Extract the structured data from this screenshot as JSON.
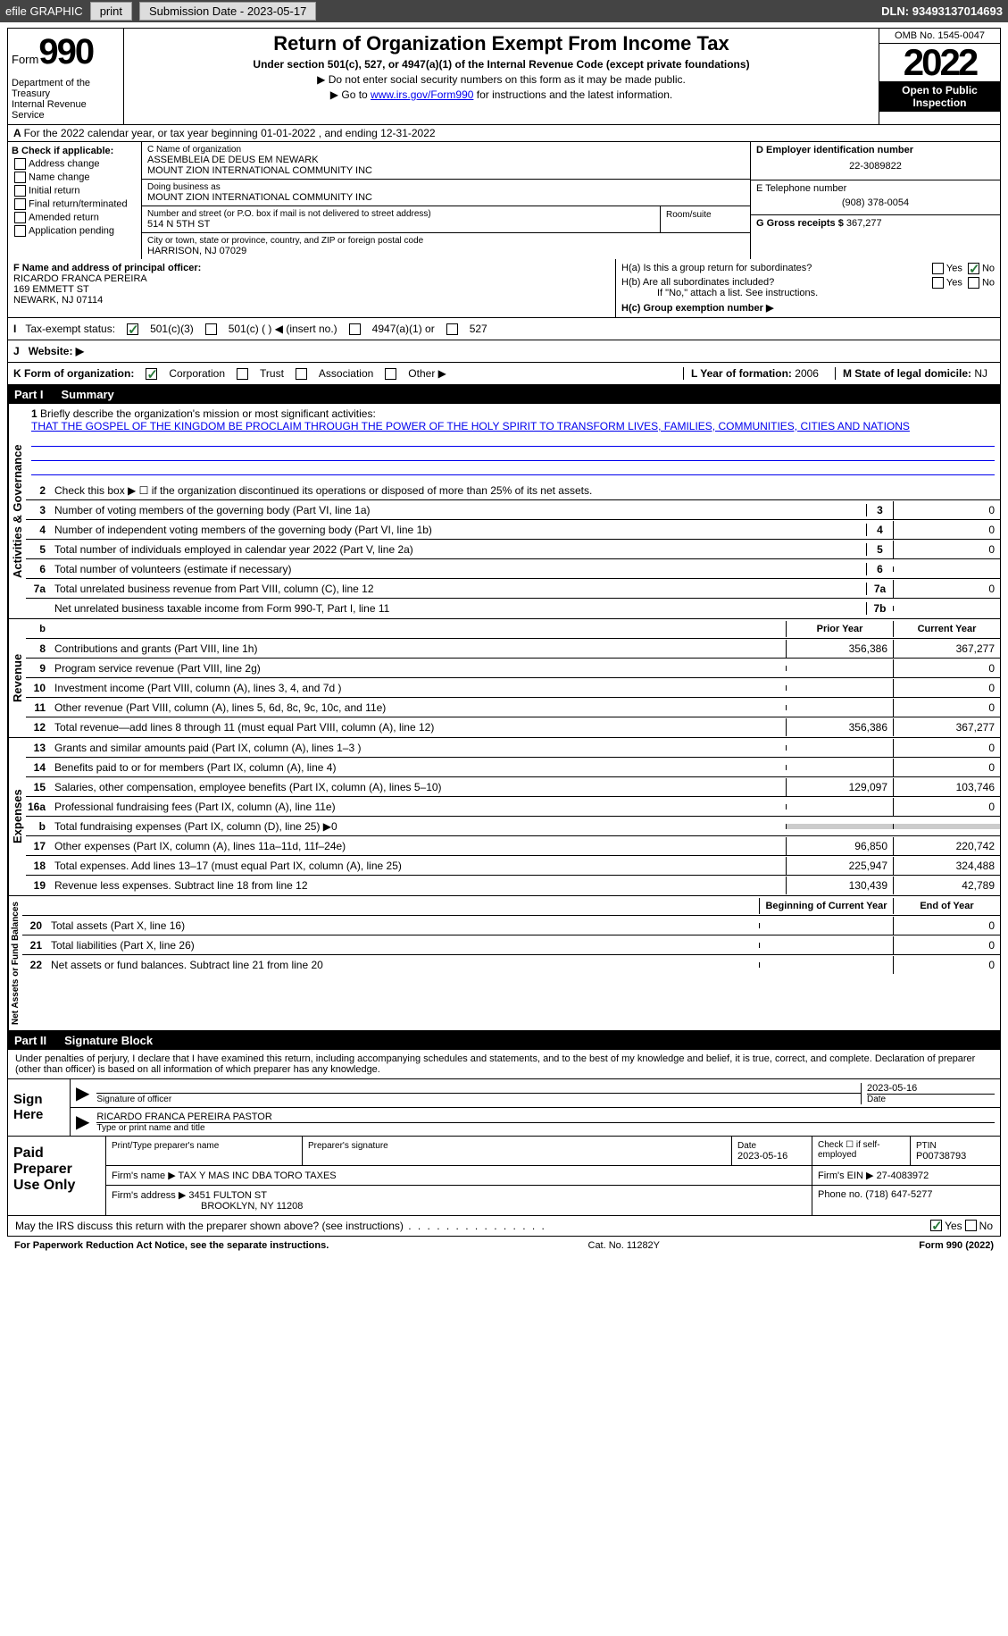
{
  "toolbar": {
    "efile": "efile GRAPHIC",
    "print": "print",
    "subdate_label": "Submission Date - ",
    "subdate": "2023-05-17",
    "dln_label": "DLN: ",
    "dln": "93493137014693"
  },
  "header": {
    "form_prefix": "Form",
    "form_number": "990",
    "title": "Return of Organization Exempt From Income Tax",
    "subtitle": "Under section 501(c), 527, or 4947(a)(1) of the Internal Revenue Code (except private foundations)",
    "note1": "▶ Do not enter social security numbers on this form as it may be made public.",
    "note2_pre": "▶ Go to ",
    "note2_link": "www.irs.gov/Form990",
    "note2_post": " for instructions and the latest information.",
    "dept": "Department of the Treasury\nInternal Revenue Service",
    "omb": "OMB No. 1545-0047",
    "year": "2022",
    "inspect": "Open to Public Inspection"
  },
  "rowA": {
    "text": "For the 2022 calendar year, or tax year beginning 01-01-2022    , and ending 12-31-2022"
  },
  "colB": {
    "header": "B Check if applicable:",
    "items": [
      "Address change",
      "Name change",
      "Initial return",
      "Final return/terminated",
      "Amended return",
      "Application pending"
    ]
  },
  "orgbox": {
    "c_label": "C Name of organization",
    "name1": "ASSEMBLEIA DE DEUS EM NEWARK",
    "name2": "MOUNT ZION INTERNATIONAL COMMUNITY INC",
    "dba_label": "Doing business as",
    "dba": "MOUNT ZION INTERNATIONAL COMMUNITY INC",
    "addr_label": "Number and street (or P.O. box if mail is not delivered to street address)",
    "room_label": "Room/suite",
    "addr": "514 N 5TH ST",
    "city_label": "City or town, state or province, country, and ZIP or foreign postal code",
    "city": "HARRISON, NJ  07029"
  },
  "rightbox": {
    "d_label": "D Employer identification number",
    "ein": "22-3089822",
    "e_label": "E Telephone number",
    "phone": "(908) 378-0054",
    "g_label": "G Gross receipts $ ",
    "gross": "367,277"
  },
  "fgh": {
    "f_label": "F  Name and address of principal officer:",
    "f_name": "RICARDO FRANCA PEREIRA",
    "f_addr1": "169 EMMETT ST",
    "f_addr2": "NEWARK, NJ  07114",
    "ha": "H(a)  Is this a group return for subordinates?",
    "hb": "H(b)  Are all subordinates included?",
    "hb_note": "If \"No,\" attach a list. See instructions.",
    "hc": "H(c)  Group exemption number ▶",
    "yes": "Yes",
    "no": "No"
  },
  "status": {
    "i": "I",
    "label": "Tax-exempt status:",
    "opt1": "501(c)(3)",
    "opt2": "501(c) (   ) ◀ (insert no.)",
    "opt3": "4947(a)(1) or",
    "opt4": "527",
    "j": "J",
    "web": "Website: ▶"
  },
  "korg": {
    "k": "K Form of organization:",
    "corp": "Corporation",
    "trust": "Trust",
    "assoc": "Association",
    "other": "Other ▶",
    "l": "L Year of formation: ",
    "lval": "2006",
    "m": "M State of legal domicile: ",
    "mval": "NJ"
  },
  "part1": {
    "num": "Part I",
    "title": "Summary"
  },
  "mission": {
    "num": "1",
    "label": "Briefly describe the organization's mission or most significant activities:",
    "text": "THAT THE GOSPEL OF THE KINGDOM BE PROCLAIM THROUGH THE POWER OF THE HOLY SPIRIT TO TRANSFORM LIVES, FAMILIES, COMMUNITIES, CITIES AND NATIONS"
  },
  "act_lines": [
    {
      "n": "2",
      "d": "Check this box ▶ ☐  if the organization discontinued its operations or disposed of more than 25% of its net assets."
    },
    {
      "n": "3",
      "d": "Number of voting members of the governing body (Part VI, line 1a)",
      "c": "3",
      "v": "0"
    },
    {
      "n": "4",
      "d": "Number of independent voting members of the governing body (Part VI, line 1b)",
      "c": "4",
      "v": "0"
    },
    {
      "n": "5",
      "d": "Total number of individuals employed in calendar year 2022 (Part V, line 2a)",
      "c": "5",
      "v": "0"
    },
    {
      "n": "6",
      "d": "Total number of volunteers (estimate if necessary)",
      "c": "6",
      "v": ""
    },
    {
      "n": "7a",
      "d": "Total unrelated business revenue from Part VIII, column (C), line 12",
      "c": "7a",
      "v": "0"
    },
    {
      "n": "",
      "d": "Net unrelated business taxable income from Form 990-T, Part I, line 11",
      "c": "7b",
      "v": ""
    }
  ],
  "rev_hdr": {
    "b": "b",
    "py": "Prior Year",
    "cy": "Current Year"
  },
  "rev_lines": [
    {
      "n": "8",
      "d": "Contributions and grants (Part VIII, line 1h)",
      "py": "356,386",
      "cy": "367,277"
    },
    {
      "n": "9",
      "d": "Program service revenue (Part VIII, line 2g)",
      "py": "",
      "cy": "0"
    },
    {
      "n": "10",
      "d": "Investment income (Part VIII, column (A), lines 3, 4, and 7d )",
      "py": "",
      "cy": "0"
    },
    {
      "n": "11",
      "d": "Other revenue (Part VIII, column (A), lines 5, 6d, 8c, 9c, 10c, and 11e)",
      "py": "",
      "cy": "0"
    },
    {
      "n": "12",
      "d": "Total revenue—add lines 8 through 11 (must equal Part VIII, column (A), line 12)",
      "py": "356,386",
      "cy": "367,277"
    }
  ],
  "exp_lines": [
    {
      "n": "13",
      "d": "Grants and similar amounts paid (Part IX, column (A), lines 1–3 )",
      "py": "",
      "cy": "0"
    },
    {
      "n": "14",
      "d": "Benefits paid to or for members (Part IX, column (A), line 4)",
      "py": "",
      "cy": "0"
    },
    {
      "n": "15",
      "d": "Salaries, other compensation, employee benefits (Part IX, column (A), lines 5–10)",
      "py": "129,097",
      "cy": "103,746"
    },
    {
      "n": "16a",
      "d": "Professional fundraising fees (Part IX, column (A), line 11e)",
      "py": "",
      "cy": "0"
    },
    {
      "n": "b",
      "d": "Total fundraising expenses (Part IX, column (D), line 25) ▶0",
      "py": "shaded",
      "cy": "shaded"
    },
    {
      "n": "17",
      "d": "Other expenses (Part IX, column (A), lines 11a–11d, 11f–24e)",
      "py": "96,850",
      "cy": "220,742"
    },
    {
      "n": "18",
      "d": "Total expenses. Add lines 13–17 (must equal Part IX, column (A), line 25)",
      "py": "225,947",
      "cy": "324,488"
    },
    {
      "n": "19",
      "d": "Revenue less expenses. Subtract line 18 from line 12",
      "py": "130,439",
      "cy": "42,789"
    }
  ],
  "na_hdr": {
    "py": "Beginning of Current Year",
    "cy": "End of Year"
  },
  "na_lines": [
    {
      "n": "20",
      "d": "Total assets (Part X, line 16)",
      "py": "",
      "cy": "0"
    },
    {
      "n": "21",
      "d": "Total liabilities (Part X, line 26)",
      "py": "",
      "cy": "0"
    },
    {
      "n": "22",
      "d": "Net assets or fund balances. Subtract line 21 from line 20",
      "py": "",
      "cy": "0"
    }
  ],
  "labels": {
    "activities": "Activities & Governance",
    "revenue": "Revenue",
    "expenses": "Expenses",
    "netassets": "Net Assets or Fund Balances"
  },
  "part2": {
    "num": "Part II",
    "title": "Signature Block"
  },
  "sig": {
    "declare": "Under penalties of perjury, I declare that I have examined this return, including accompanying schedules and statements, and to the best of my knowledge and belief, it is true, correct, and complete. Declaration of preparer (other than officer) is based on all information of which preparer has any knowledge.",
    "sign_here": "Sign Here",
    "sig_officer": "Signature of officer",
    "date": "Date",
    "date_val": "2023-05-16",
    "name_title": "RICARDO FRANCA PEREIRA PASTOR",
    "name_title_lbl": "Type or print name and title"
  },
  "paid": {
    "label": "Paid Preparer Use Only",
    "h1": "Print/Type preparer's name",
    "h2": "Preparer's signature",
    "h3": "Date",
    "h3v": "2023-05-16",
    "h4": "Check ☐ if self-employed",
    "h5": "PTIN",
    "h5v": "P00738793",
    "firm_name_lbl": "Firm's name    ▶ ",
    "firm_name": "TAX Y MAS INC DBA TORO TAXES",
    "firm_ein_lbl": "Firm's EIN ▶ ",
    "firm_ein": "27-4083972",
    "firm_addr_lbl": "Firm's address ▶ ",
    "firm_addr": "3451 FULTON ST",
    "firm_city": "BROOKLYN, NY  11208",
    "phone_lbl": "Phone no. ",
    "phone": "(718) 647-5277"
  },
  "discuss": {
    "q": "May the IRS discuss this return with the preparer shown above? (see instructions)",
    "yes": "Yes",
    "no": "No"
  },
  "footer": {
    "left": "For Paperwork Reduction Act Notice, see the separate instructions.",
    "mid": "Cat. No. 11282Y",
    "right": "Form 990 (2022)"
  }
}
